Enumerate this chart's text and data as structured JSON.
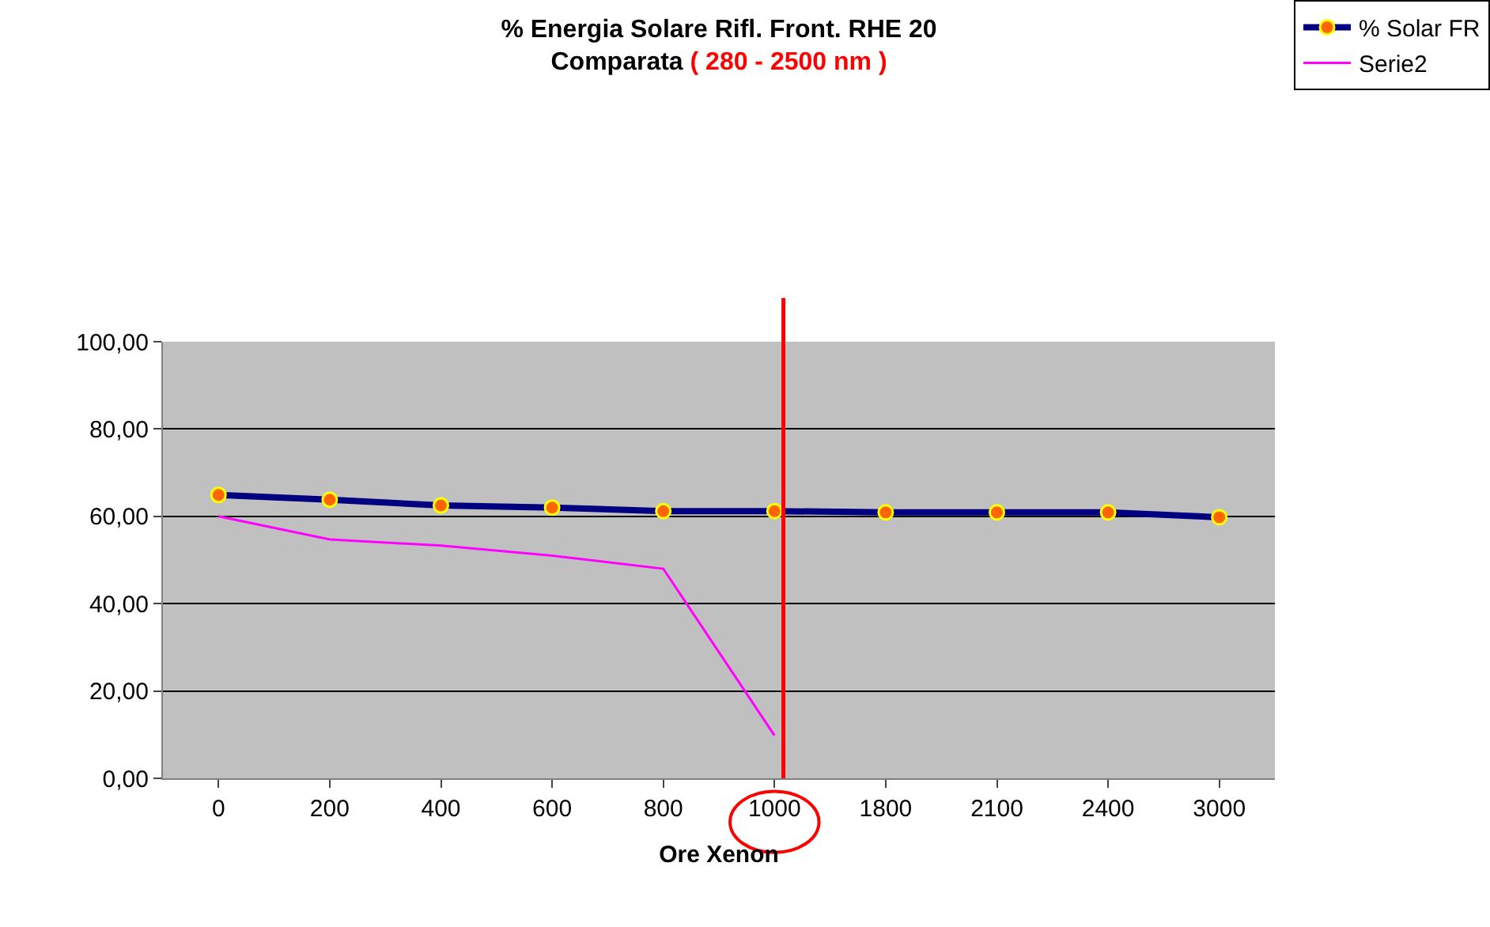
{
  "chart_data": {
    "type": "line",
    "title": "% Energia Solare Rifl. Front. RHE 20",
    "subtitle": "Comparata ( 280 - 2500 nm )",
    "xlabel": "Ore Xenon",
    "categories": [
      "0",
      "200",
      "400",
      "600",
      "800",
      "1000",
      "1800",
      "2100",
      "2400",
      "3000"
    ],
    "series": [
      {
        "name": "% Solar FR",
        "color": "#000080",
        "marker": "circle",
        "values": [
          64.9,
          63.8,
          62.5,
          62.0,
          61.2,
          61.2,
          60.9,
          60.9,
          60.9,
          59.8
        ]
      },
      {
        "name": "Serie2",
        "color": "#ff00ff",
        "marker": "none",
        "values": [
          60.0,
          54.7,
          53.3,
          51.0,
          48.0,
          9.8,
          null,
          null,
          null,
          null
        ]
      }
    ],
    "ylim": [
      0,
      100
    ],
    "yticks": [
      {
        "value": 0,
        "label": "0,00"
      },
      {
        "value": 20,
        "label": "20,00"
      },
      {
        "value": 40,
        "label": "40,00"
      },
      {
        "value": 60,
        "label": "60,00"
      },
      {
        "value": 80,
        "label": "80,00"
      },
      {
        "value": 100,
        "label": "100,00"
      }
    ],
    "ref_lines": [
      {
        "axis": "x",
        "value": "1000",
        "color": "#ff0000"
      }
    ],
    "grid": "y",
    "legend": "top right"
  }
}
